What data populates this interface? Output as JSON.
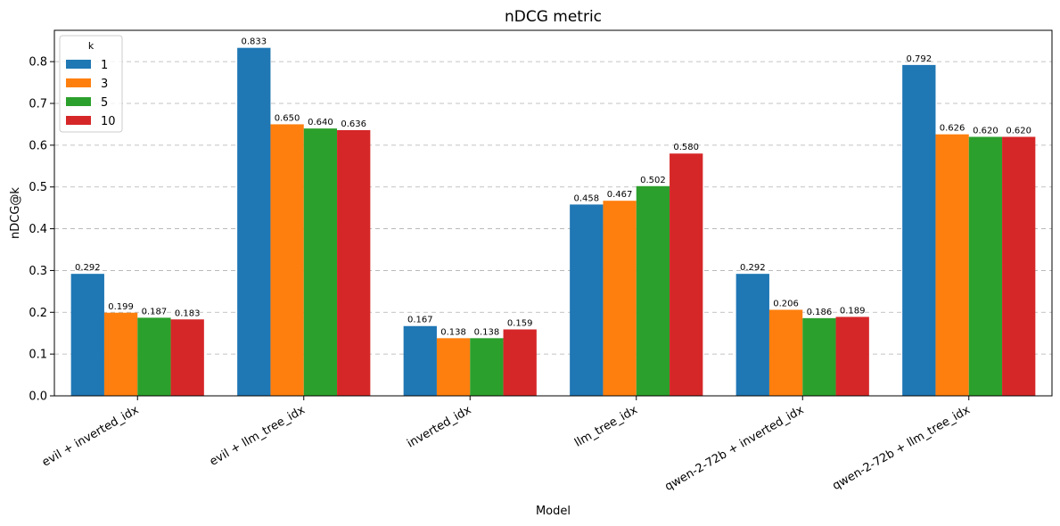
{
  "chart_data": {
    "type": "bar",
    "title": "nDCG metric",
    "xlabel": "Model",
    "ylabel": "nDCG@k",
    "ylim": [
      0,
      0.875
    ],
    "yticks": [
      0.0,
      0.1,
      0.2,
      0.3,
      0.4,
      0.5,
      0.6,
      0.7,
      0.8
    ],
    "grid": "y-dashed",
    "legend": {
      "title": "k",
      "placement": "top-left"
    },
    "categories": [
      "evil + inverted_idx",
      "evil + llm_tree_idx",
      "inverted_idx",
      "llm_tree_idx",
      "qwen-2-72b + inverted_idx",
      "qwen-2-72b + llm_tree_idx"
    ],
    "series": [
      {
        "name": "1",
        "color": "#1f77b4",
        "values": [
          0.292,
          0.833,
          0.167,
          0.458,
          0.292,
          0.792
        ]
      },
      {
        "name": "3",
        "color": "#ff7f0e",
        "values": [
          0.199,
          0.65,
          0.138,
          0.467,
          0.206,
          0.626
        ]
      },
      {
        "name": "5",
        "color": "#2ca02c",
        "values": [
          0.187,
          0.64,
          0.138,
          0.502,
          0.186,
          0.62
        ]
      },
      {
        "name": "10",
        "color": "#d62728",
        "values": [
          0.183,
          0.636,
          0.159,
          0.58,
          0.189,
          0.62
        ]
      }
    ]
  }
}
